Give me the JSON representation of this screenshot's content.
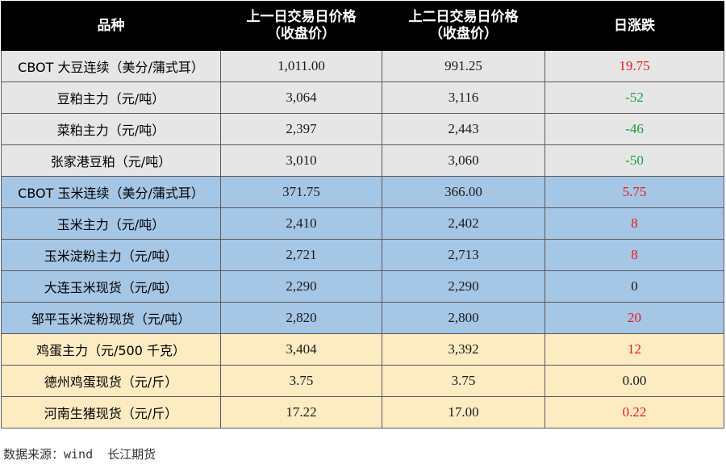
{
  "header": {
    "col_variety": "品种",
    "col_prev1_line1": "上一日交易日价格",
    "col_prev1_line2": "（收盘价）",
    "col_prev2_line1": "上二日交易日价格",
    "col_prev2_line2": "（收盘价）",
    "col_change": "日涨跌"
  },
  "rows": [
    {
      "name": "CBOT 大豆连续（美分/蒲式耳）",
      "prev1": "1,011.00",
      "prev2": "991.25",
      "change": "19.75",
      "direction": "up",
      "group": "soy"
    },
    {
      "name": "豆粕主力（元/吨）",
      "prev1": "3,064",
      "prev2": "3,116",
      "change": "-52",
      "direction": "down",
      "group": "soy"
    },
    {
      "name": "菜粕主力（元/吨）",
      "prev1": "2,397",
      "prev2": "2,443",
      "change": "-46",
      "direction": "down",
      "group": "soy"
    },
    {
      "name": "张家港豆粕（元/吨）",
      "prev1": "3,010",
      "prev2": "3,060",
      "change": "-50",
      "direction": "down",
      "group": "soy"
    },
    {
      "name": "CBOT 玉米连续（美分/蒲式耳）",
      "prev1": "371.75",
      "prev2": "366.00",
      "change": "5.75",
      "direction": "up",
      "group": "corn"
    },
    {
      "name": "玉米主力（元/吨）",
      "prev1": "2,410",
      "prev2": "2,402",
      "change": "8",
      "direction": "up",
      "group": "corn"
    },
    {
      "name": "玉米淀粉主力（元/吨）",
      "prev1": "2,721",
      "prev2": "2,713",
      "change": "8",
      "direction": "up",
      "group": "corn"
    },
    {
      "name": "大连玉米现货（元/吨）",
      "prev1": "2,290",
      "prev2": "2,290",
      "change": "0",
      "direction": "flat",
      "group": "corn"
    },
    {
      "name": "邹平玉米淀粉现货（元/吨）",
      "prev1": "2,820",
      "prev2": "2,800",
      "change": "20",
      "direction": "up",
      "group": "corn"
    },
    {
      "name": "鸡蛋主力（元/500 千克）",
      "prev1": "3,404",
      "prev2": "3,392",
      "change": "12",
      "direction": "up",
      "group": "egg"
    },
    {
      "name": "德州鸡蛋现货（元/斤）",
      "prev1": "3.75",
      "prev2": "3.75",
      "change": "0.00",
      "direction": "flat",
      "group": "egg"
    },
    {
      "name": "河南生猪现货（元/斤）",
      "prev1": "17.22",
      "prev2": "17.00",
      "change": "0.22",
      "direction": "up",
      "group": "egg"
    }
  ],
  "colors": {
    "header_bg": "#000000",
    "soy_bg": "#e6e6e6",
    "corn_bg": "#a6c6e6",
    "egg_bg": "#fdebc2",
    "up": "#e8191b",
    "down": "#1a9f3a"
  },
  "footer": {
    "source": "数据来源：wind  长江期货"
  }
}
